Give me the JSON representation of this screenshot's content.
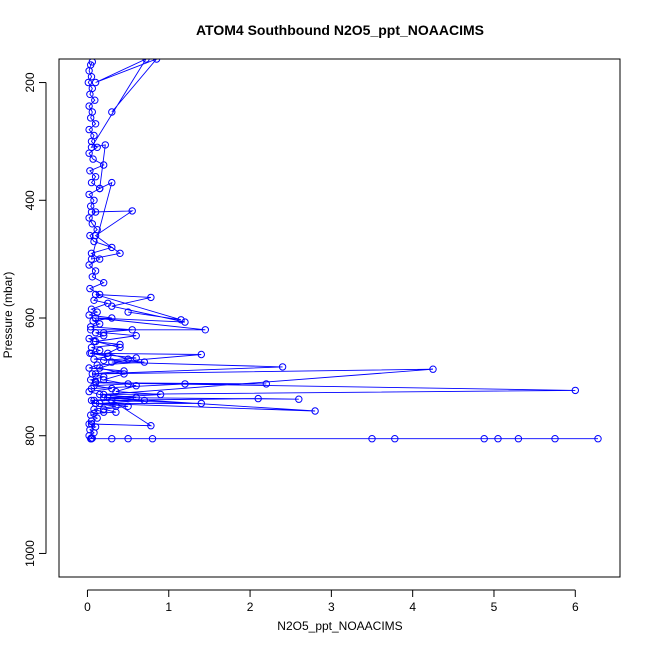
{
  "chart_data": {
    "type": "line",
    "title": "ATOM4 Southbound N2O5_ppt_NOAACIMS",
    "xlabel": "N2O5_ppt_NOAACIMS",
    "ylabel": "Pressure (mbar)",
    "xlim": [
      -0.35,
      6.55
    ],
    "ylim": [
      1040,
      160
    ],
    "y_reversed": true,
    "grid": false,
    "legend": "none",
    "x_ticks": [
      0,
      1,
      2,
      3,
      4,
      5,
      6
    ],
    "y_ticks": [
      200,
      400,
      600,
      800,
      1000
    ],
    "marker": "open-circle",
    "color": "#0000ff",
    "series": [
      {
        "points": [
          [
            0.04,
            805
          ],
          [
            0.06,
            804
          ],
          [
            0.02,
            800
          ],
          [
            0.08,
            795
          ],
          [
            0.03,
            790
          ],
          [
            0.1,
            785
          ],
          [
            0.02,
            780
          ],
          [
            0.05,
            775
          ],
          [
            0.12,
            770
          ],
          [
            0.04,
            765
          ],
          [
            0.2,
            760
          ],
          [
            0.08,
            755
          ],
          [
            0.35,
            750
          ],
          [
            0.1,
            745
          ],
          [
            0.05,
            740
          ],
          [
            0.6,
            735
          ],
          [
            0.15,
            730
          ],
          [
            0.02,
            725
          ],
          [
            0.3,
            720
          ],
          [
            0.08,
            715
          ],
          [
            0.5,
            712
          ],
          [
            0.1,
            708
          ],
          [
            0.04,
            705
          ],
          [
            0.2,
            700
          ],
          [
            0.06,
            695
          ],
          [
            0.45,
            690
          ],
          [
            0.02,
            685
          ],
          [
            0.12,
            680
          ],
          [
            0.7,
            675
          ],
          [
            0.08,
            670
          ],
          [
            0.25,
            665
          ],
          [
            0.03,
            660
          ],
          [
            0.15,
            655
          ],
          [
            0.05,
            650
          ],
          [
            0.4,
            645
          ],
          [
            0.08,
            640
          ],
          [
            0.02,
            635
          ],
          [
            0.2,
            630
          ],
          [
            0.1,
            625
          ],
          [
            0.55,
            620
          ],
          [
            0.04,
            615
          ],
          [
            0.15,
            610
          ],
          [
            0.07,
            605
          ],
          [
            0.3,
            600
          ],
          [
            0.02,
            595
          ],
          [
            0.12,
            590
          ],
          [
            0.05,
            585
          ],
          [
            0.25,
            575
          ],
          [
            0.08,
            570
          ],
          [
            0.15,
            560
          ],
          [
            0.03,
            550
          ],
          [
            0.2,
            540
          ],
          [
            0.06,
            530
          ],
          [
            0.1,
            520
          ],
          [
            0.02,
            510
          ],
          [
            0.15,
            500
          ],
          [
            0.05,
            490
          ],
          [
            0.3,
            480
          ],
          [
            0.08,
            470
          ],
          [
            0.03,
            460
          ],
          [
            0.12,
            450
          ],
          [
            0.06,
            440
          ],
          [
            0.02,
            430
          ],
          [
            0.1,
            420
          ],
          [
            0.04,
            410
          ],
          [
            0.08,
            400
          ],
          [
            0.02,
            390
          ],
          [
            0.15,
            380
          ],
          [
            0.05,
            370
          ],
          [
            0.1,
            360
          ],
          [
            0.03,
            350
          ],
          [
            0.2,
            340
          ],
          [
            0.07,
            330
          ],
          [
            0.02,
            320
          ],
          [
            0.12,
            310
          ],
          [
            0.05,
            300
          ],
          [
            0.08,
            290
          ],
          [
            0.02,
            280
          ],
          [
            0.1,
            270
          ],
          [
            0.04,
            260
          ],
          [
            0.06,
            250
          ],
          [
            0.02,
            240
          ],
          [
            0.09,
            230
          ],
          [
            0.03,
            220
          ],
          [
            0.06,
            210
          ],
          [
            0.01,
            200
          ],
          [
            0.05,
            190
          ],
          [
            0.02,
            180
          ],
          [
            0.04,
            170
          ],
          [
            0.06,
            165
          ]
        ]
      },
      {
        "points": [
          [
            0.05,
            805
          ],
          [
            0.3,
            805
          ],
          [
            0.5,
            805
          ],
          [
            0.8,
            805
          ],
          [
            3.5,
            805
          ],
          [
            3.78,
            805
          ],
          [
            4.88,
            805
          ],
          [
            5.05,
            805
          ],
          [
            5.3,
            805
          ],
          [
            5.75,
            805
          ],
          [
            6.28,
            805
          ]
        ]
      },
      {
        "points": [
          [
            0.05,
            720
          ],
          [
            1.2,
            712
          ],
          [
            2.2,
            712
          ],
          [
            0.1,
            710
          ],
          [
            6.0,
            723
          ],
          [
            0.2,
            730
          ],
          [
            4.25,
            687
          ],
          [
            0.1,
            695
          ],
          [
            2.4,
            683
          ],
          [
            0.3,
            675
          ],
          [
            1.4,
            662
          ],
          [
            0.05,
            660
          ],
          [
            0.6,
            668
          ],
          [
            0.2,
            672
          ]
        ]
      },
      {
        "points": [
          [
            0.08,
            740
          ],
          [
            2.1,
            737
          ],
          [
            2.6,
            738
          ],
          [
            0.2,
            735
          ],
          [
            2.8,
            758
          ],
          [
            0.1,
            745
          ],
          [
            1.4,
            745
          ],
          [
            0.3,
            740
          ],
          [
            0.78,
            783
          ],
          [
            0.05,
            780
          ]
        ]
      },
      {
        "points": [
          [
            0.04,
            620
          ],
          [
            1.45,
            620
          ],
          [
            0.1,
            600
          ],
          [
            1.2,
            607
          ],
          [
            0.3,
            580
          ],
          [
            0.78,
            565
          ],
          [
            0.1,
            560
          ],
          [
            1.15,
            603
          ],
          [
            0.5,
            590
          ]
        ]
      },
      {
        "points": [
          [
            0.05,
            420
          ],
          [
            0.55,
            418
          ],
          [
            0.1,
            460
          ],
          [
            0.4,
            490
          ],
          [
            0.05,
            500
          ],
          [
            0.3,
            370
          ],
          [
            0.15,
            380
          ],
          [
            0.22,
            306
          ],
          [
            0.05,
            310
          ],
          [
            0.72,
            160
          ],
          [
            0.1,
            200
          ],
          [
            0.85,
            160
          ],
          [
            0.3,
            250
          ]
        ]
      },
      {
        "points": [
          [
            0.08,
            762
          ],
          [
            0.35,
            760
          ],
          [
            0.2,
            755
          ],
          [
            0.5,
            750
          ],
          [
            0.15,
            745
          ],
          [
            0.7,
            740
          ],
          [
            0.25,
            735
          ],
          [
            0.9,
            730
          ],
          [
            0.35,
            725
          ],
          [
            0.6,
            715
          ],
          [
            0.2,
            705
          ],
          [
            0.45,
            695
          ],
          [
            0.15,
            685
          ],
          [
            0.5,
            670
          ],
          [
            0.25,
            660
          ],
          [
            0.4,
            650
          ],
          [
            0.1,
            640
          ],
          [
            0.6,
            630
          ],
          [
            0.2,
            625
          ]
        ]
      }
    ]
  }
}
